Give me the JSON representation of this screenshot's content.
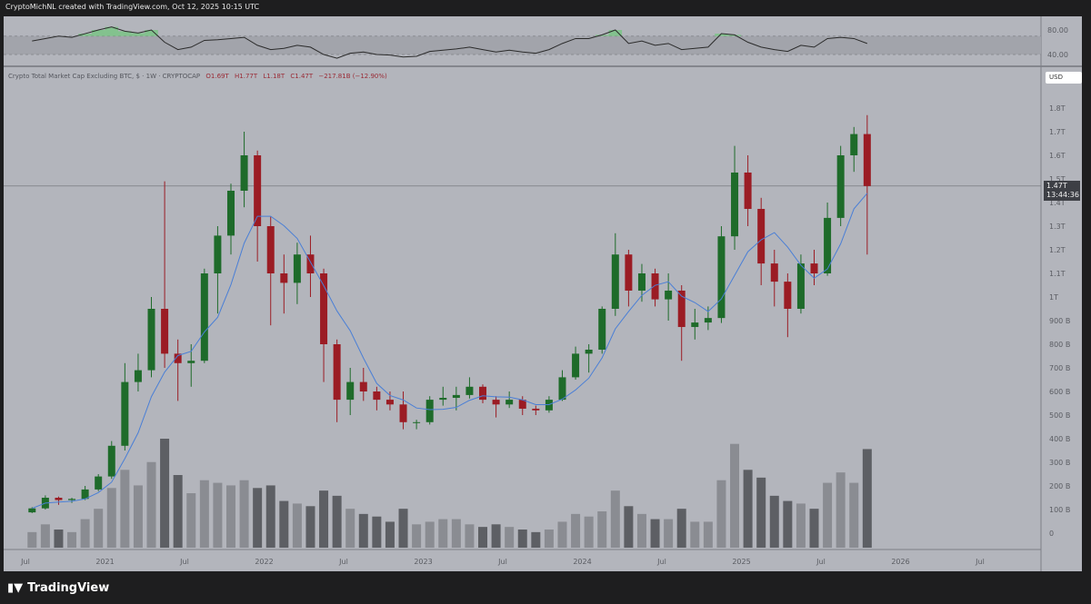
{
  "credit": "CryptoMichNL created with TradingView.com, Oct 12, 2025 10:15 UTC",
  "legend": {
    "symbol": "Crypto Total Market Cap Excluding BTC, $ · 1W · CRYPTOCAP",
    "open": "O1.69T",
    "high": "H1.77T",
    "low": "L1.18T",
    "close": "C1.47T",
    "change": "−217.81B (−12.90%)"
  },
  "currency_button": "USD",
  "price_tag": {
    "price": "1.47T",
    "countdown": "13:44:36"
  },
  "brand": "TradingView",
  "colors": {
    "up": "#1e6b2a",
    "down": "#9b1c24",
    "ma": "#4a7fd6",
    "rsi": "#2b2b2b",
    "rsi_overbought_fill": "#6fc77a",
    "pane": "#b3b5bc"
  },
  "chart_data": [
    {
      "type": "candlestick",
      "title": "Crypto Total Market Cap Excluding BTC",
      "y_unit": "USD (billions)",
      "yscale": "linear",
      "ylim": [
        0,
        1900
      ],
      "y_ticks": [
        "1.8T",
        "1.7T",
        "1.6T",
        "1.5T",
        "1.4T",
        "1.3T",
        "1.2T",
        "1.1T",
        "1T",
        "900 B",
        "800 B",
        "700 B",
        "600 B",
        "500 B",
        "400 B",
        "300 B",
        "200 B",
        "100 B",
        "0"
      ],
      "y_tick_values": [
        1800,
        1700,
        1600,
        1500,
        1400,
        1300,
        1200,
        1100,
        1000,
        900,
        800,
        700,
        600,
        500,
        400,
        300,
        200,
        100,
        0
      ],
      "x_ticks": [
        "Jul",
        "2021",
        "Jul",
        "2022",
        "Jul",
        "2023",
        "Jul",
        "2024",
        "Jul",
        "2025",
        "Jul",
        "2026",
        "Jul"
      ],
      "current_price": 1470,
      "candles": [
        [
          "2020-07",
          88,
          110,
          85,
          105,
          60
        ],
        [
          "2020-08",
          105,
          160,
          100,
          150,
          90
        ],
        [
          "2020-09",
          150,
          155,
          120,
          140,
          70
        ],
        [
          "2020-10",
          140,
          150,
          128,
          145,
          60
        ],
        [
          "2020-11",
          145,
          200,
          140,
          185,
          110
        ],
        [
          "2020-12",
          185,
          250,
          178,
          240,
          150
        ],
        [
          "2021-01",
          240,
          390,
          230,
          370,
          230
        ],
        [
          "2021-02",
          370,
          720,
          350,
          640,
          300
        ],
        [
          "2021-03",
          640,
          760,
          600,
          690,
          240
        ],
        [
          "2021-04",
          690,
          1000,
          660,
          950,
          330
        ],
        [
          "2021-05",
          950,
          1490,
          700,
          760,
          420
        ],
        [
          "2021-06",
          760,
          820,
          560,
          720,
          280
        ],
        [
          "2021-07",
          720,
          800,
          620,
          730,
          210
        ],
        [
          "2021-08",
          730,
          1120,
          720,
          1100,
          260
        ],
        [
          "2021-09",
          1100,
          1300,
          930,
          1260,
          250
        ],
        [
          "2021-10",
          1260,
          1480,
          1180,
          1450,
          240
        ],
        [
          "2021-11",
          1450,
          1700,
          1380,
          1600,
          260
        ],
        [
          "2021-12",
          1600,
          1620,
          1150,
          1300,
          230
        ],
        [
          "2022-01",
          1300,
          1340,
          880,
          1100,
          240
        ],
        [
          "2022-02",
          1100,
          1180,
          930,
          1060,
          180
        ],
        [
          "2022-03",
          1060,
          1230,
          970,
          1180,
          170
        ],
        [
          "2022-04",
          1180,
          1260,
          1000,
          1100,
          160
        ],
        [
          "2022-05",
          1100,
          1120,
          640,
          800,
          220
        ],
        [
          "2022-06",
          800,
          820,
          470,
          565,
          200
        ],
        [
          "2022-07",
          565,
          700,
          500,
          640,
          150
        ],
        [
          "2022-08",
          640,
          700,
          560,
          600,
          130
        ],
        [
          "2022-09",
          600,
          620,
          520,
          565,
          120
        ],
        [
          "2022-10",
          565,
          600,
          520,
          545,
          100
        ],
        [
          "2022-11",
          545,
          600,
          440,
          470,
          150
        ],
        [
          "2022-12",
          470,
          480,
          440,
          470,
          90
        ],
        [
          "2023-01",
          470,
          580,
          460,
          565,
          100
        ],
        [
          "2023-02",
          565,
          620,
          540,
          573,
          110
        ],
        [
          "2023-03",
          573,
          620,
          520,
          585,
          110
        ],
        [
          "2023-04",
          585,
          660,
          570,
          620,
          90
        ],
        [
          "2023-05",
          620,
          630,
          550,
          565,
          80
        ],
        [
          "2023-06",
          565,
          580,
          490,
          545,
          90
        ],
        [
          "2023-07",
          545,
          600,
          530,
          565,
          80
        ],
        [
          "2023-08",
          565,
          580,
          500,
          527,
          70
        ],
        [
          "2023-09",
          527,
          540,
          500,
          520,
          60
        ],
        [
          "2023-10",
          520,
          580,
          510,
          565,
          70
        ],
        [
          "2023-11",
          565,
          690,
          560,
          660,
          100
        ],
        [
          "2023-12",
          660,
          790,
          650,
          760,
          130
        ],
        [
          "2024-01",
          760,
          800,
          680,
          777,
          120
        ],
        [
          "2024-02",
          777,
          960,
          760,
          950,
          140
        ],
        [
          "2024-03",
          950,
          1270,
          920,
          1180,
          220
        ],
        [
          "2024-04",
          1180,
          1200,
          960,
          1027,
          160
        ],
        [
          "2024-05",
          1027,
          1140,
          980,
          1100,
          130
        ],
        [
          "2024-06",
          1100,
          1120,
          960,
          990,
          110
        ],
        [
          "2024-07",
          990,
          1100,
          900,
          1027,
          110
        ],
        [
          "2024-08",
          1027,
          1050,
          730,
          873,
          150
        ],
        [
          "2024-09",
          873,
          950,
          820,
          892,
          100
        ],
        [
          "2024-10",
          892,
          960,
          860,
          911,
          100
        ],
        [
          "2024-11",
          911,
          1300,
          890,
          1257,
          260
        ],
        [
          "2024-12",
          1257,
          1640,
          1200,
          1527,
          400
        ],
        [
          "2025-01",
          1527,
          1600,
          1300,
          1373,
          300
        ],
        [
          "2025-02",
          1373,
          1420,
          1050,
          1142,
          270
        ],
        [
          "2025-03",
          1142,
          1200,
          960,
          1065,
          200
        ],
        [
          "2025-04",
          1065,
          1100,
          830,
          950,
          180
        ],
        [
          "2025-05",
          950,
          1180,
          930,
          1142,
          170
        ],
        [
          "2025-06",
          1142,
          1200,
          1050,
          1100,
          150
        ],
        [
          "2025-07",
          1100,
          1400,
          1090,
          1335,
          250
        ],
        [
          "2025-08",
          1335,
          1640,
          1300,
          1600,
          290
        ],
        [
          "2025-09",
          1600,
          1720,
          1530,
          1690,
          250
        ],
        [
          "2025-10",
          1690,
          1770,
          1180,
          1470,
          380
        ]
      ],
      "candle_fields": [
        "period",
        "open",
        "high",
        "low",
        "close",
        "volume_relative"
      ],
      "moving_average": "blue line (approx. 20-week average)"
    },
    {
      "type": "line",
      "title": "RSI",
      "ylim": [
        30,
        90
      ],
      "y_ticks": [
        "80.00",
        "40.00"
      ],
      "y_tick_values": [
        80,
        40
      ],
      "band": [
        40,
        70
      ],
      "values": [
        62,
        66,
        70,
        68,
        74,
        80,
        85,
        78,
        75,
        80,
        60,
        48,
        52,
        63,
        64,
        66,
        68,
        55,
        48,
        50,
        55,
        52,
        40,
        34,
        42,
        44,
        40,
        39,
        36,
        37,
        45,
        47,
        49,
        52,
        48,
        44,
        47,
        44,
        42,
        48,
        58,
        66,
        66,
        72,
        80,
        58,
        62,
        55,
        58,
        48,
        50,
        52,
        74,
        72,
        60,
        52,
        48,
        45,
        55,
        52,
        66,
        68,
        66,
        58
      ]
    }
  ]
}
